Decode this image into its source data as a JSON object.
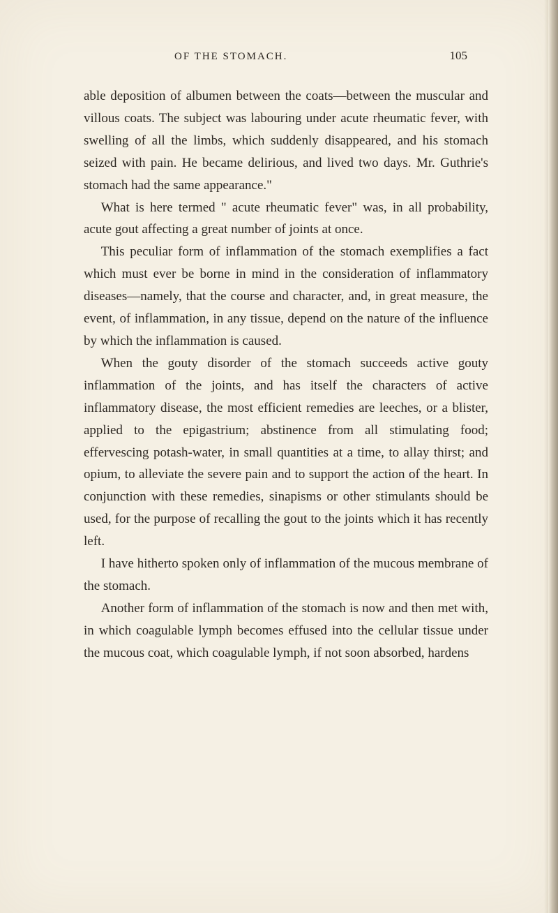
{
  "page": {
    "runningHead": "OF THE STOMACH.",
    "pageNumber": "105"
  },
  "paragraphs": {
    "p1": "able deposition of albumen between the coats—between the muscular and villous coats. The subject was labouring under acute rheumatic fever, with swelling of all the limbs, which suddenly disappeared, and his stomach seized with pain. He became delirious, and lived two days. Mr. Guthrie's stomach had the same appearance.\"",
    "p2": "What is here termed \" acute rheumatic fever\" was, in all probability, acute gout affecting a great number of joints at once.",
    "p3": "This peculiar form of inflammation of the stomach exemplifies a fact which must ever be borne in mind in the consideration of inflammatory diseases—namely, that the course and character, and, in great measure, the event, of inflammation, in any tissue, depend on the nature of the influence by which the inflammation is caused.",
    "p4": "When the gouty disorder of the stomach succeeds active gouty inflammation of the joints, and has itself the characters of active inflammatory disease, the most efficient remedies are leeches, or a blister, applied to the epigastrium; abstinence from all stimulating food; effervescing potash-water, in small quantities at a time, to allay thirst; and opium, to alleviate the severe pain and to support the action of the heart. In conjunction with these remedies, sinapisms or other stimulants should be used, for the purpose of recalling the gout to the joints which it has recently left.",
    "p5": "I have hitherto spoken only of inflammation of the mucous membrane of the stomach.",
    "p6": "Another form of inflammation of the stomach is now and then met with, in which coagulable lymph becomes effused into the cellular tissue under the mucous coat, which coagulable lymph, if not soon absorbed, hardens"
  },
  "style": {
    "backgroundColor": "#f5f0e4",
    "textColor": "#2a2520",
    "bodyFontSize": 19,
    "lineHeight": 1.68,
    "headerFontSize": 15,
    "pageNumFontSize": 17
  }
}
